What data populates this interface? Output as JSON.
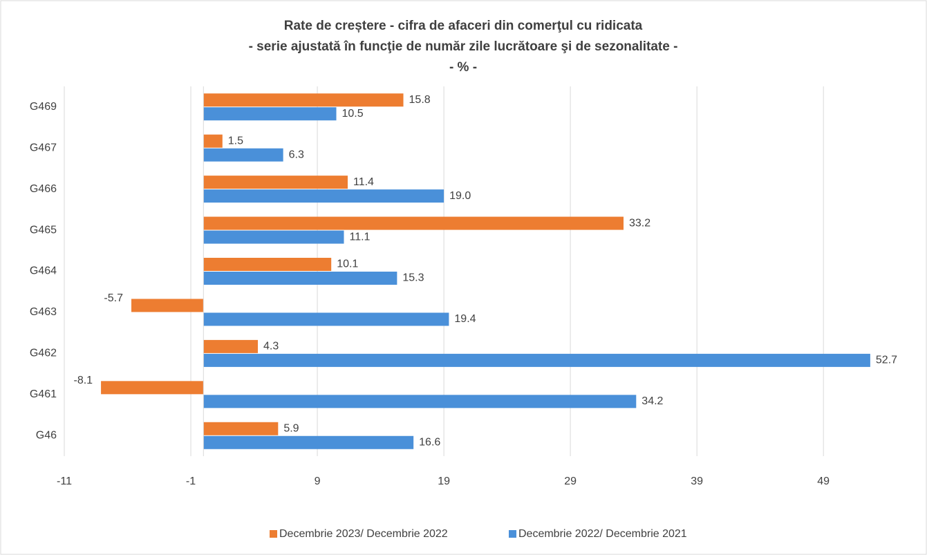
{
  "chart_data": {
    "type": "barh",
    "title": [
      "Rate de creștere - cifra de afaceri din comerţul cu ridicata",
      "- serie ajustată în funcţie de număr zile lucrătoare şi de sezonalitate -",
      "- % -"
    ],
    "categories": [
      "G469",
      "G467",
      "G466",
      "G465",
      "G464",
      "G463",
      "G462",
      "G461",
      "G46"
    ],
    "series": [
      {
        "name": "Decembrie 2023/ Decembrie 2022",
        "color": "#ed7d31",
        "values": [
          15.8,
          1.5,
          11.4,
          33.2,
          10.1,
          -5.7,
          4.3,
          -8.1,
          5.9
        ],
        "value_labels": [
          "15.8",
          "1.5",
          "11.4",
          "33.2",
          "10.1",
          "-5.7",
          "4.3",
          "-8.1",
          "5.9"
        ]
      },
      {
        "name": "Decembrie 2022/ Decembrie 2021",
        "color": "#4a90d9",
        "values": [
          10.5,
          6.3,
          19.0,
          11.1,
          15.3,
          19.4,
          52.7,
          34.2,
          16.6
        ],
        "value_labels": [
          "10.5",
          "6.3",
          "19.0",
          "11.1",
          "15.3",
          "19.4",
          "52.7",
          "34.2",
          "16.6"
        ]
      }
    ],
    "xlim": [
      -11,
      55
    ],
    "xticks": [
      -11,
      -1,
      9,
      19,
      29,
      39,
      49
    ],
    "grid": true,
    "legend": "bottom"
  }
}
